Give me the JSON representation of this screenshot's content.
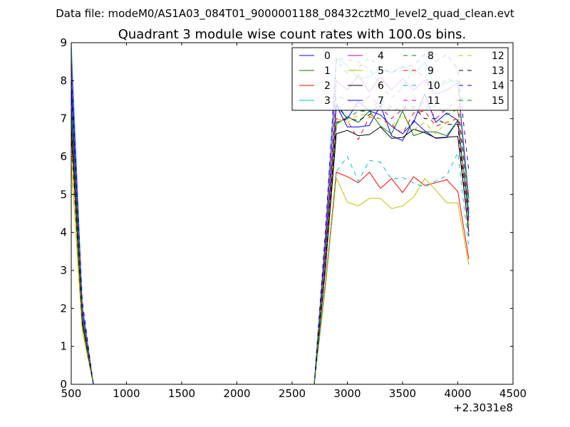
{
  "chart_data": {
    "type": "line",
    "suptitle": "Data file: modeM0/AS1A03_084T01_9000001188_08432cztM0_level2_quad_clean.evt",
    "title": "Quadrant 3 module wise count rates with 100.0s bins.",
    "xlabel": "",
    "ylabel": "",
    "x_offset_label": "+2.3031e8",
    "xlim": [
      500,
      4500
    ],
    "ylim": [
      0,
      9
    ],
    "xticks": [
      500,
      1000,
      1500,
      2000,
      2500,
      3000,
      3500,
      4000,
      4500
    ],
    "yticks": [
      0,
      1,
      2,
      3,
      4,
      5,
      6,
      7,
      8,
      9
    ],
    "grid": false,
    "legend_position": "top-right",
    "x": [
      500,
      600,
      700,
      800,
      900,
      1000,
      1100,
      1200,
      1300,
      1400,
      1500,
      1600,
      1700,
      1800,
      1900,
      2000,
      2100,
      2200,
      2300,
      2400,
      2500,
      2600,
      2700,
      2800,
      2900,
      3000,
      3100,
      3200,
      3300,
      3400,
      3500,
      3600,
      3700,
      3800,
      3900,
      4000,
      4100
    ],
    "series": [
      {
        "name": "0",
        "color": "#0000ff",
        "dash": false,
        "values": [
          7.8,
          1.8,
          0,
          0,
          0,
          0,
          0,
          0,
          0,
          0,
          0,
          0,
          0,
          0,
          0,
          0,
          0,
          0,
          0,
          0,
          0,
          0,
          0,
          3.4,
          7.35,
          6.78,
          6.78,
          6.82,
          7.35,
          6.55,
          6.42,
          6.95,
          6.68,
          6.48,
          6.5,
          6.95,
          4.3
        ]
      },
      {
        "name": "1",
        "color": "#008000",
        "dash": false,
        "values": [
          7.3,
          1.7,
          0,
          0,
          0,
          0,
          0,
          0,
          0,
          0,
          0,
          0,
          0,
          0,
          0,
          0,
          0,
          0,
          0,
          0,
          0,
          0,
          0,
          3.2,
          6.85,
          7.05,
          6.9,
          7.2,
          6.8,
          6.6,
          7.2,
          6.55,
          6.65,
          6.65,
          6.55,
          6.95,
          4.5
        ]
      },
      {
        "name": "2",
        "color": "#ff0000",
        "dash": false,
        "values": [
          6.6,
          1.6,
          0,
          0,
          0,
          0,
          0,
          0,
          0,
          0,
          0,
          0,
          0,
          0,
          0,
          0,
          0,
          0,
          0,
          0,
          0,
          0,
          0,
          2.6,
          5.59,
          5.47,
          5.31,
          5.59,
          5.16,
          5.42,
          5.05,
          5.47,
          5.24,
          5.31,
          5.39,
          5.08,
          3.3
        ]
      },
      {
        "name": "3",
        "color": "#00bfbf",
        "dash": false,
        "values": [
          9.0,
          2.1,
          0,
          0,
          0,
          0,
          0,
          0,
          0,
          0,
          0,
          0,
          0,
          0,
          0,
          0,
          0,
          0,
          0,
          0,
          0,
          0,
          0,
          3.9,
          8.6,
          8.4,
          8.05,
          8.1,
          8.3,
          8.2,
          8.4,
          8.15,
          8.5,
          7.8,
          7.95,
          8.0,
          4.5
        ]
      },
      {
        "name": "4",
        "color": "#bf00bf",
        "dash": false,
        "values": [
          8.6,
          2.0,
          0,
          0,
          0,
          0,
          0,
          0,
          0,
          0,
          0,
          0,
          0,
          0,
          0,
          0,
          0,
          0,
          0,
          0,
          0,
          0,
          0,
          3.7,
          8.0,
          7.75,
          8.15,
          7.7,
          8.1,
          7.75,
          8.05,
          7.75,
          8.0,
          7.65,
          7.75,
          7.95,
          4.9
        ]
      },
      {
        "name": "5",
        "color": "#bfbf00",
        "dash": false,
        "values": [
          5.8,
          1.4,
          0,
          0,
          0,
          0,
          0,
          0,
          0,
          0,
          0,
          0,
          0,
          0,
          0,
          0,
          0,
          0,
          0,
          0,
          0,
          0,
          0,
          2.5,
          5.43,
          4.8,
          4.7,
          4.9,
          4.9,
          4.63,
          4.7,
          4.93,
          5.42,
          5.12,
          4.78,
          4.78,
          3.15
        ]
      },
      {
        "name": "6",
        "color": "#000000",
        "dash": false,
        "values": [
          6.9,
          1.6,
          0,
          0,
          0,
          0,
          0,
          0,
          0,
          0,
          0,
          0,
          0,
          0,
          0,
          0,
          0,
          0,
          0,
          0,
          0,
          0,
          0,
          3.0,
          6.6,
          6.69,
          6.55,
          6.58,
          6.78,
          6.48,
          6.5,
          6.72,
          6.63,
          6.49,
          6.51,
          6.53,
          4.0
        ]
      },
      {
        "name": "7",
        "color": "#0000ff",
        "dash": false,
        "values": [
          8.0,
          1.9,
          0,
          0,
          0,
          0,
          0,
          0,
          0,
          0,
          0,
          0,
          0,
          0,
          0,
          0,
          0,
          0,
          0,
          0,
          0,
          0,
          0,
          3.4,
          7.35,
          7.0,
          7.45,
          7.2,
          7.1,
          6.8,
          6.6,
          6.9,
          7.65,
          6.9,
          7.15,
          6.95,
          4.4
        ]
      },
      {
        "name": "8",
        "color": "#008000",
        "dash": true,
        "values": [
          7.5,
          1.8,
          0,
          0,
          0,
          0,
          0,
          0,
          0,
          0,
          0,
          0,
          0,
          0,
          0,
          0,
          0,
          0,
          0,
          0,
          0,
          0,
          0,
          3.9,
          8.6,
          8.55,
          8.5,
          8.3,
          7.9,
          7.55,
          7.8,
          8.3,
          8.1,
          7.75,
          8.05,
          7.95,
          4.8
        ]
      },
      {
        "name": "9",
        "color": "#ff0000",
        "dash": true,
        "values": [
          7.0,
          1.7,
          0,
          0,
          0,
          0,
          0,
          0,
          0,
          0,
          0,
          0,
          0,
          0,
          0,
          0,
          0,
          0,
          0,
          0,
          0,
          0,
          0,
          3.2,
          7.0,
          6.95,
          6.45,
          7.05,
          7.0,
          6.85,
          6.6,
          7.15,
          7.2,
          6.8,
          6.9,
          7.0,
          4.2
        ]
      },
      {
        "name": "10",
        "color": "#00bfbf",
        "dash": true,
        "values": [
          8.3,
          1.9,
          0,
          0,
          0,
          0,
          0,
          0,
          0,
          0,
          0,
          0,
          0,
          0,
          0,
          0,
          0,
          0,
          0,
          0,
          0,
          0,
          0,
          2.6,
          5.6,
          6.0,
          5.35,
          5.9,
          5.85,
          5.4,
          5.45,
          5.3,
          5.2,
          5.35,
          5.5,
          6.1,
          3.6
        ]
      },
      {
        "name": "11",
        "color": "#bf00bf",
        "dash": true,
        "values": [
          8.5,
          2.0,
          0,
          0,
          0,
          0,
          0,
          0,
          0,
          0,
          0,
          0,
          0,
          0,
          0,
          0,
          0,
          0,
          0,
          0,
          0,
          0,
          0,
          3.5,
          7.6,
          7.5,
          7.3,
          7.6,
          7.3,
          7.0,
          7.25,
          7.3,
          7.45,
          7.0,
          7.25,
          7.5,
          4.6
        ]
      },
      {
        "name": "12",
        "color": "#bfbf00",
        "dash": true,
        "values": [
          6.2,
          1.5,
          0,
          0,
          0,
          0,
          0,
          0,
          0,
          0,
          0,
          0,
          0,
          0,
          0,
          0,
          0,
          0,
          0,
          0,
          0,
          0,
          0,
          3.2,
          7.0,
          6.9,
          7.1,
          7.1,
          7.0,
          6.8,
          7.1,
          6.7,
          6.9,
          6.6,
          6.9,
          7.2,
          4.2
        ]
      },
      {
        "name": "13",
        "color": "#000000",
        "dash": true,
        "values": [
          6.6,
          1.6,
          0,
          0,
          0,
          0,
          0,
          0,
          0,
          0,
          0,
          0,
          0,
          0,
          0,
          0,
          0,
          0,
          0,
          0,
          0,
          0,
          0,
          3.1,
          6.9,
          7.0,
          6.95,
          7.1,
          7.4,
          7.2,
          7.3,
          7.3,
          7.0,
          7.0,
          6.85,
          6.85,
          3.9
        ]
      },
      {
        "name": "14",
        "color": "#0000ff",
        "dash": true,
        "values": [
          8.2,
          2.2,
          0,
          0,
          0,
          0,
          0,
          0,
          0,
          0,
          0,
          0,
          0,
          0,
          0,
          0,
          0,
          0,
          0,
          0,
          0,
          0,
          0,
          4.0,
          8.55,
          8.2,
          8.35,
          8.6,
          8.35,
          8.2,
          8.35,
          8.4,
          8.7,
          8.5,
          8.7,
          8.3,
          5.6
        ]
      },
      {
        "name": "15",
        "color": "#008000",
        "dash": true,
        "values": [
          7.2,
          1.7,
          0,
          0,
          0,
          0,
          0,
          0,
          0,
          0,
          0,
          0,
          0,
          0,
          0,
          0,
          0,
          0,
          0,
          0,
          0,
          0,
          0,
          3.4,
          7.4,
          7.0,
          7.2,
          7.2,
          7.5,
          7.3,
          7.2,
          7.6,
          7.25,
          7.35,
          7.1,
          7.25,
          4.7
        ]
      }
    ]
  }
}
